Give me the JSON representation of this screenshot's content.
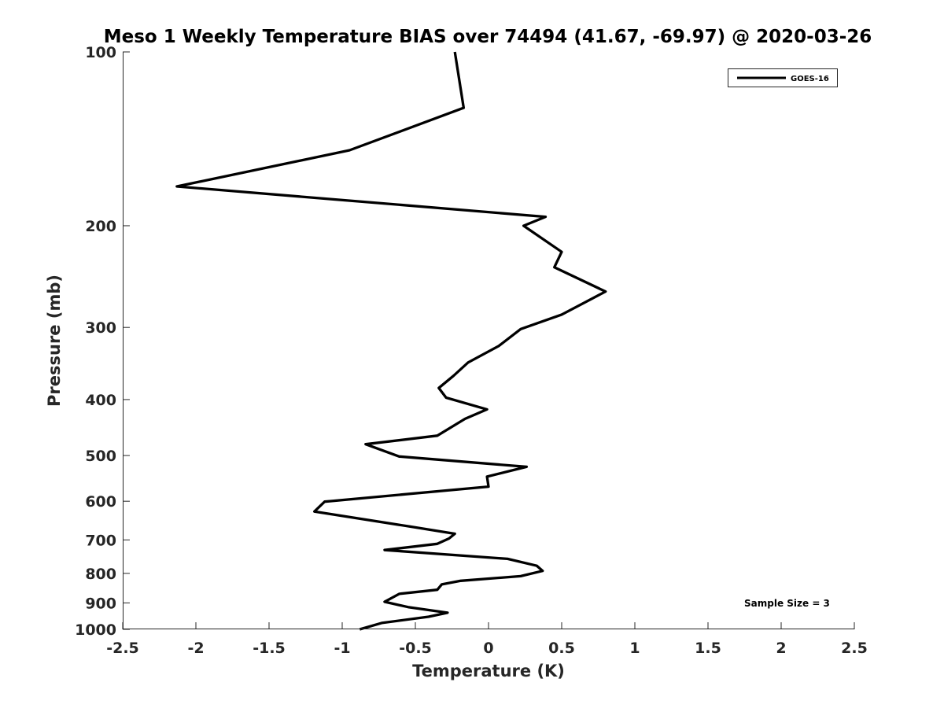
{
  "chart_data": {
    "type": "line",
    "title": "Meso 1 Weekly Temperature BIAS over 74494 (41.67, -69.97) @ 2020-03-26",
    "xlabel": "Temperature (K)",
    "ylabel": "Pressure (mb)",
    "xlim": [
      -2.5,
      2.5
    ],
    "ylim": [
      100,
      1000
    ],
    "y_scale": "log",
    "y_reversed": true,
    "x_ticks": [
      -2.5,
      -2,
      -1.5,
      -1,
      -0.5,
      0,
      0.5,
      1,
      1.5,
      2,
      2.5
    ],
    "x_tick_labels": [
      "-2.5",
      "-2",
      "-1.5",
      "-1",
      "-0.5",
      "0",
      "0.5",
      "1",
      "1.5",
      "2",
      "2.5"
    ],
    "y_ticks": [
      100,
      200,
      300,
      400,
      500,
      600,
      700,
      800,
      900,
      1000
    ],
    "y_tick_labels": [
      "100",
      "200",
      "300",
      "400",
      "500",
      "600",
      "700",
      "800",
      "900",
      "1000"
    ],
    "grid": false,
    "legend_position": "top-right",
    "annotation": "Sample Size = 3",
    "line_color": "#000000",
    "series": [
      {
        "name": "GOES-16",
        "x": [
          -0.23,
          -0.17,
          -0.95,
          -2.13,
          0.39,
          0.24,
          0.5,
          0.45,
          0.8,
          0.5,
          0.22,
          0.07,
          -0.14,
          -0.24,
          -0.34,
          -0.29,
          -0.01,
          -0.16,
          -0.35,
          -0.84,
          -0.61,
          0.26,
          -0.01,
          0.0,
          -1.12,
          -1.19,
          -0.53,
          -0.23,
          -0.27,
          -0.35,
          -0.71,
          0.13,
          0.33,
          0.37,
          0.22,
          -0.19,
          -0.32,
          -0.35,
          -0.61,
          -0.71,
          -0.55,
          -0.28,
          -0.41,
          -0.73,
          -0.88
        ],
        "y": [
          100,
          125,
          148,
          171,
          193,
          200,
          222,
          236,
          260,
          285,
          302,
          323,
          345,
          364,
          382,
          397,
          416,
          432,
          462,
          478,
          502,
          523,
          544,
          566,
          601,
          625,
          664,
          683,
          696,
          711,
          729,
          755,
          776,
          792,
          809,
          824,
          836,
          854,
          868,
          896,
          915,
          936,
          951,
          975,
          1000
        ]
      }
    ]
  }
}
